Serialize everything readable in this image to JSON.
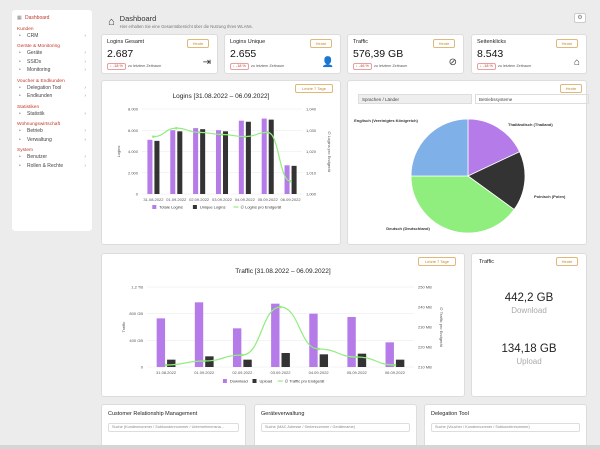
{
  "sidebar": {
    "dashboard": "Dashboard",
    "sections": [
      {
        "title": "Kunden",
        "items": [
          {
            "label": "CRM",
            "icon": "users-icon"
          }
        ]
      },
      {
        "title": "Geräte & Monitoring",
        "items": [
          {
            "label": "Geräte",
            "icon": "device-icon"
          },
          {
            "label": "SSIDs",
            "icon": "wifi-icon"
          },
          {
            "label": "Monitoring",
            "icon": "monitor-icon"
          }
        ]
      },
      {
        "title": "Voucher & Endkunden",
        "items": [
          {
            "label": "Delegation Tool",
            "icon": "delegation-icon"
          },
          {
            "label": "Endkunden",
            "icon": "customer-icon"
          }
        ]
      },
      {
        "title": "Statistiken",
        "items": [
          {
            "label": "Statistik",
            "icon": "stats-icon"
          }
        ]
      },
      {
        "title": "Wohnungswirtschaft",
        "items": [
          {
            "label": "Betrieb",
            "icon": "building-icon"
          },
          {
            "label": "Verwaltung",
            "icon": "admin-icon"
          }
        ]
      },
      {
        "title": "System",
        "items": [
          {
            "label": "Benutzer",
            "icon": "user-icon"
          },
          {
            "label": "Rollen & Rechte",
            "icon": "roles-icon"
          }
        ]
      }
    ]
  },
  "header": {
    "title": "Dashboard",
    "subtitle": "Hier erhalten Sie eine Gesamtübersicht über die Nutzung Ihres WLANs."
  },
  "kpis": [
    {
      "label": "Logins Gesamt",
      "value": "2.687",
      "badge": "↓ -18 %",
      "cmp": "zu letztem Zeitraum",
      "button": "Heute",
      "icon": "login-icon",
      "glyph": "⇥"
    },
    {
      "label": "Logins Unique",
      "value": "2.655",
      "badge": "↓ -18 %",
      "cmp": "zu letztem Zeitraum",
      "button": "Heute",
      "icon": "user-icon",
      "glyph": "👤"
    },
    {
      "label": "Traffic",
      "value": "576,39 GB",
      "badge": "↓ -46 %",
      "cmp": "zu letztem Zeitraum",
      "button": "Heute",
      "icon": "speed-icon",
      "glyph": "⊘"
    },
    {
      "label": "Seitenklicks",
      "value": "8.543",
      "badge": "↓ -18 %",
      "cmp": "zu letztem Zeitraum",
      "button": "Heute",
      "icon": "mouse-icon",
      "glyph": "⌂"
    }
  ],
  "logins_chart": {
    "title": "Logins [31.08.2022 – 06.09.2022]",
    "button": "Letzte 7 Tage"
  },
  "traffic_chart": {
    "title": "Traffic [31.08.2022 – 06.09.2022]",
    "button": "Letzte 7 Tage"
  },
  "pie_card": {
    "tab1": "Sprachen / Länder",
    "tab2": "Betriebssysteme",
    "button": "Heute"
  },
  "traffic_total": {
    "label": "Traffic",
    "button": "Heute",
    "download": "442,2 GB",
    "download_label": "Download",
    "upload": "134,18 GB",
    "upload_label": "Upload"
  },
  "bottom": [
    {
      "label": "Customer Relationship Management",
      "placeholder": "Suche (Kundennummer / Subkundennummer / Unternehmensna..."
    },
    {
      "label": "Geräteverwaltung",
      "placeholder": "Suche (MAC Adresse / Seriennummer / Gerätename)"
    },
    {
      "label": "Delegation Tool",
      "placeholder": "Suche (Voucher / Kundennummer / Subkundennummer)"
    }
  ],
  "colors": {
    "purple": "#b57be8",
    "dark": "#333333",
    "green": "#90ee7e",
    "blue": "#7fb1e8",
    "red": "#c0392b",
    "orange": "#e0b87a"
  },
  "chart_data": [
    {
      "type": "bar",
      "title": "Logins [31.08.2022 – 06.09.2022]",
      "categories": [
        "31.08.2022",
        "01.09.2022",
        "02.09.2022",
        "03.09.2022",
        "04.09.2022",
        "05.09.2022",
        "06.09.2022"
      ],
      "series": [
        {
          "name": "Totale Logins",
          "values": [
            5100,
            6000,
            6200,
            6000,
            6900,
            7100,
            2700
          ]
        },
        {
          "name": "Unique Logins",
          "values": [
            5000,
            5900,
            6100,
            5900,
            6800,
            7000,
            2650
          ]
        },
        {
          "name": "∅ Logins pro Endgerät",
          "values": [
            1.027,
            1.031,
            1.029,
            1.028,
            1.027,
            1.029,
            1.006
          ],
          "axis": "right"
        }
      ],
      "ylabel": "Logins",
      "ylim": [
        0,
        8000
      ],
      "yticks": [
        "0",
        "2.000",
        "4.000",
        "6.000",
        "8.000"
      ],
      "y2label": "∅ Logins pro Endgerät",
      "y2lim": [
        1.0,
        1.04
      ],
      "y2ticks": [
        "1,000",
        "1,010",
        "1,020",
        "1,030",
        "1,040"
      ],
      "legend": "bottom"
    },
    {
      "type": "bar",
      "title": "Traffic [31.08.2022 – 06.09.2022]",
      "categories": [
        "31.08.2022",
        "01.09.2022",
        "02.09.2022",
        "03.09.2022",
        "04.09.2022",
        "05.09.2022",
        "06.09.2022"
      ],
      "series": [
        {
          "name": "Download",
          "values": [
            730,
            970,
            580,
            950,
            800,
            750,
            370
          ]
        },
        {
          "name": "Upload",
          "values": [
            110,
            160,
            110,
            210,
            190,
            200,
            110
          ]
        },
        {
          "name": "∅ Traffic pro Endgerät",
          "values": [
            211,
            213,
            216,
            240,
            219,
            215,
            211
          ],
          "axis": "right"
        }
      ],
      "ylabel": "Traffic",
      "ylim": [
        0,
        1200
      ],
      "yticks": [
        "0",
        "400 GB",
        "800 GB",
        "1,2 TB"
      ],
      "y2label": "∅ Traffic pro Endgerät",
      "y2lim": [
        210,
        250
      ],
      "y2ticks": [
        "210 MB",
        "220 MB",
        "230 MB",
        "240 MB",
        "250 MB"
      ],
      "legend": "bottom"
    },
    {
      "type": "pie",
      "categories": [
        "Thailändisch (Thailand)",
        "Polnisch (Polen)",
        "Deutsch (Deutschland)",
        "Englisch (Vereinigtes Königreich)"
      ],
      "values": [
        18,
        17,
        40,
        25
      ]
    }
  ]
}
